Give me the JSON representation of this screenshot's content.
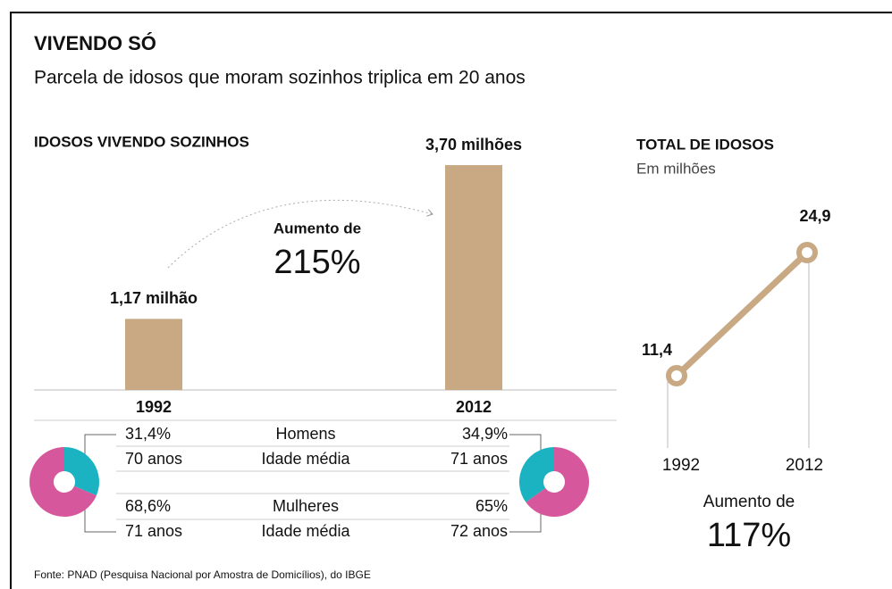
{
  "header": {
    "title": "VIVENDO SÓ",
    "subtitle": "Parcela de idosos que moram sozinhos triplica em 20 anos"
  },
  "chart_data": [
    {
      "type": "bar",
      "title": "IDOSOS VIVENDO SOZINHOS",
      "categories": [
        "1992",
        "2012"
      ],
      "values": [
        1.17,
        3.7
      ],
      "value_labels": [
        "1,17 milhão",
        "3,70 milhões"
      ],
      "color": "#c8a983",
      "annotation": {
        "text": "Aumento de",
        "value": "215%"
      }
    },
    {
      "type": "line",
      "title": "TOTAL DE IDOSOS",
      "subtitle": "Em milhões",
      "categories": [
        "1992",
        "2012"
      ],
      "values": [
        11.4,
        24.9
      ],
      "value_labels": [
        "11,4",
        "24,9"
      ],
      "color": "#c8a983",
      "annotation": {
        "text": "Aumento de",
        "value": "117%"
      }
    },
    {
      "type": "pie",
      "categories": [
        "Homens",
        "Mulheres"
      ],
      "colors": [
        "#1bb3c1",
        "#d6579c"
      ],
      "series": [
        {
          "values": [
            31.4,
            68.6
          ],
          "value_labels": [
            "31,4%",
            "68,6%"
          ]
        },
        {
          "values": [
            34.9,
            65
          ],
          "value_labels": [
            "34,9%",
            "65%"
          ]
        }
      ]
    }
  ],
  "ages": {
    "rows": [
      [
        "70 anos",
        "Idade média",
        "71 anos"
      ],
      [
        "71 anos",
        "Idade média",
        "72 anos"
      ]
    ]
  },
  "source": "Fonte: PNAD (Pesquisa Nacional por Amostra de Domicílios), do IBGE"
}
